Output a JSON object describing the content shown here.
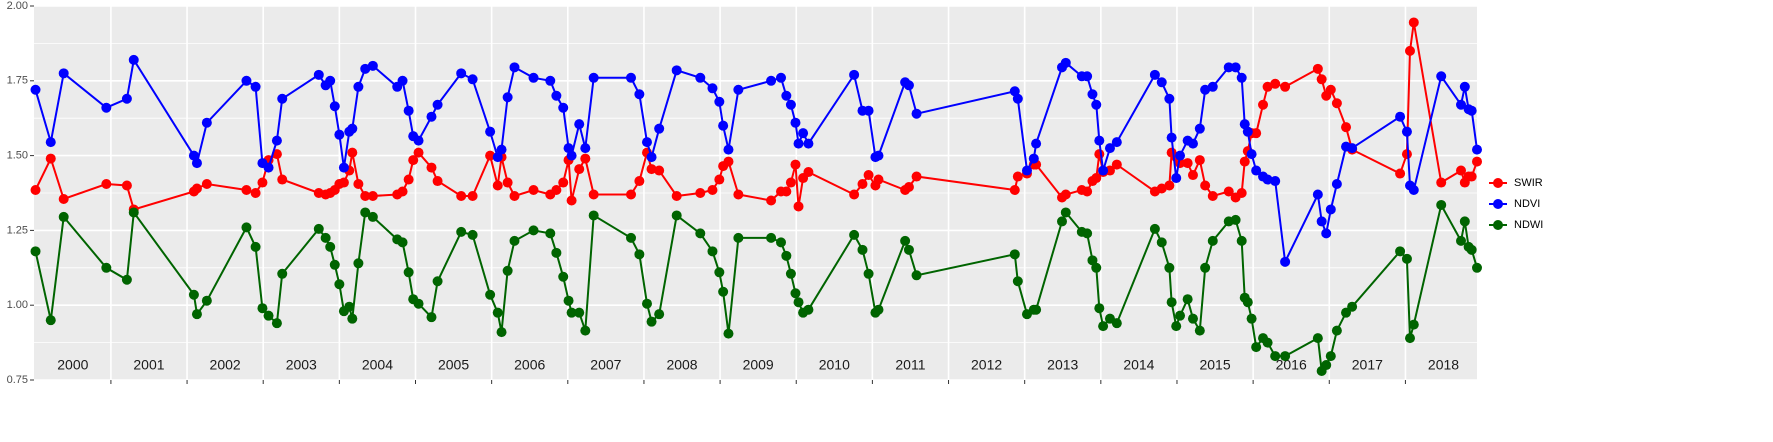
{
  "chart_data": {
    "type": "line",
    "legend": "right",
    "grid": true,
    "xlim": [
      1999.99,
      2018.94
    ],
    "xticks": [
      2001,
      2002,
      2003,
      2004,
      2005,
      2006,
      2007,
      2008,
      2009,
      2010,
      2011,
      2012,
      2013,
      2014,
      2015,
      2016,
      2017,
      2018
    ],
    "year_labels": [
      2000,
      2001,
      2002,
      2003,
      2004,
      2005,
      2006,
      2007,
      2008,
      2009,
      2010,
      2011,
      2012,
      2013,
      2014,
      2015,
      2016,
      2017,
      2018
    ],
    "ylim": [
      0.75,
      2.0
    ],
    "yticks": [
      {
        "value": 0.75,
        "label": "0.75"
      },
      {
        "value": 1.0,
        "label": "1.00"
      },
      {
        "value": 1.25,
        "label": "1.25"
      },
      {
        "value": 1.5,
        "label": "1.50"
      },
      {
        "value": 1.75,
        "label": "1.75"
      },
      {
        "value": 2.0,
        "label": "2.00"
      }
    ],
    "yminor_grid": [
      0.875,
      1.125,
      1.375,
      1.625,
      1.875
    ],
    "x": [
      2000.01,
      2000.21,
      2000.38,
      2000.94,
      2001.21,
      2001.3,
      2002.09,
      2002.13,
      2002.26,
      2002.78,
      2002.9,
      2002.99,
      2003.07,
      2003.18,
      2003.25,
      2003.73,
      2003.82,
      2003.88,
      2003.94,
      2004.0,
      2004.06,
      2004.13,
      2004.17,
      2004.25,
      2004.34,
      2004.44,
      2004.76,
      2004.83,
      2004.91,
      2004.97,
      2005.04,
      2005.21,
      2005.29,
      2005.6,
      2005.75,
      2005.98,
      2006.08,
      2006.13,
      2006.21,
      2006.3,
      2006.55,
      2006.77,
      2006.85,
      2006.94,
      2007.01,
      2007.05,
      2007.15,
      2007.23,
      2007.34,
      2007.83,
      2007.94,
      2008.04,
      2008.1,
      2008.2,
      2008.43,
      2008.74,
      2008.9,
      2008.99,
      2009.04,
      2009.11,
      2009.24,
      2009.67,
      2009.8,
      2009.87,
      2009.93,
      2009.99,
      2010.03,
      2010.09,
      2010.16,
      2010.76,
      2010.87,
      2010.95,
      2011.04,
      2011.08,
      2011.43,
      2011.48,
      2011.58,
      2012.87,
      2012.91,
      2013.03,
      2013.12,
      2013.15,
      2013.49,
      2013.54,
      2013.75,
      2013.82,
      2013.89,
      2013.94,
      2013.98,
      2014.03,
      2014.12,
      2014.21,
      2014.71,
      2014.8,
      2014.9,
      2014.93,
      2014.99,
      2015.04,
      2015.14,
      2015.21,
      2015.3,
      2015.37,
      2015.47,
      2015.68,
      2015.77,
      2015.85,
      2015.89,
      2015.93,
      2015.98,
      2016.04,
      2016.13,
      2016.19,
      2016.29,
      2016.42,
      2016.85,
      2016.9,
      2016.96,
      2017.02,
      2017.1,
      2017.22,
      2017.3,
      2017.93,
      2018.02,
      2018.06,
      2018.11,
      2018.47,
      2018.73,
      2018.78,
      2018.83,
      2018.87,
      2018.94
    ],
    "series": [
      {
        "name": "SWIR",
        "color": "#ff0000",
        "values": [
          1.385,
          1.49,
          1.355,
          1.405,
          1.4,
          1.32,
          1.38,
          1.39,
          1.405,
          1.385,
          1.375,
          1.41,
          1.485,
          1.505,
          1.42,
          1.375,
          1.37,
          1.375,
          1.385,
          1.405,
          1.41,
          1.45,
          1.51,
          1.405,
          1.365,
          1.365,
          1.37,
          1.38,
          1.42,
          1.485,
          1.51,
          1.46,
          1.415,
          1.365,
          1.365,
          1.5,
          1.4,
          1.495,
          1.41,
          1.365,
          1.385,
          1.37,
          1.385,
          1.41,
          1.485,
          1.35,
          1.455,
          1.49,
          1.37,
          1.37,
          1.415,
          1.51,
          1.455,
          1.45,
          1.365,
          1.375,
          1.385,
          1.42,
          1.465,
          1.48,
          1.37,
          1.35,
          1.38,
          1.38,
          1.41,
          1.47,
          1.33,
          1.425,
          1.445,
          1.37,
          1.405,
          1.435,
          1.4,
          1.42,
          1.385,
          1.395,
          1.43,
          1.385,
          1.43,
          1.44,
          1.47,
          1.47,
          1.36,
          1.37,
          1.385,
          1.38,
          1.415,
          1.425,
          1.505,
          1.445,
          1.45,
          1.47,
          1.38,
          1.39,
          1.4,
          1.51,
          1.495,
          1.475,
          1.475,
          1.435,
          1.485,
          1.4,
          1.365,
          1.38,
          1.36,
          1.375,
          1.48,
          1.515,
          1.575,
          1.575,
          1.67,
          1.73,
          1.74,
          1.73,
          1.79,
          1.755,
          1.7,
          1.72,
          1.675,
          1.595,
          1.52,
          1.44,
          1.505,
          1.85,
          1.945,
          1.41,
          1.45,
          1.41,
          1.43,
          1.43,
          1.48
        ]
      },
      {
        "name": "NDVI",
        "color": "#0000ff",
        "values": [
          1.72,
          1.545,
          1.775,
          1.66,
          1.69,
          1.82,
          1.5,
          1.475,
          1.61,
          1.75,
          1.73,
          1.475,
          1.46,
          1.55,
          1.69,
          1.77,
          1.735,
          1.75,
          1.665,
          1.57,
          1.46,
          1.58,
          1.59,
          1.73,
          1.79,
          1.8,
          1.73,
          1.75,
          1.65,
          1.565,
          1.55,
          1.63,
          1.67,
          1.775,
          1.755,
          1.58,
          1.495,
          1.52,
          1.695,
          1.795,
          1.76,
          1.75,
          1.7,
          1.66,
          1.525,
          1.5,
          1.605,
          1.525,
          1.76,
          1.76,
          1.705,
          1.545,
          1.495,
          1.59,
          1.785,
          1.76,
          1.725,
          1.68,
          1.6,
          1.52,
          1.72,
          1.75,
          1.76,
          1.7,
          1.67,
          1.61,
          1.54,
          1.575,
          1.54,
          1.77,
          1.65,
          1.65,
          1.495,
          1.5,
          1.745,
          1.735,
          1.64,
          1.715,
          1.69,
          1.45,
          1.49,
          1.54,
          1.795,
          1.81,
          1.765,
          1.765,
          1.705,
          1.67,
          1.55,
          1.45,
          1.525,
          1.545,
          1.77,
          1.745,
          1.69,
          1.56,
          1.425,
          1.5,
          1.55,
          1.54,
          1.59,
          1.72,
          1.73,
          1.795,
          1.795,
          1.76,
          1.605,
          1.58,
          1.505,
          1.45,
          1.43,
          1.42,
          1.415,
          1.145,
          1.37,
          1.28,
          1.24,
          1.32,
          1.405,
          1.53,
          1.525,
          1.63,
          1.58,
          1.4,
          1.385,
          1.765,
          1.67,
          1.73,
          1.655,
          1.65,
          1.52
        ]
      },
      {
        "name": "NDWI",
        "color": "#006400",
        "values": [
          1.18,
          0.95,
          1.295,
          1.125,
          1.085,
          1.31,
          1.035,
          0.97,
          1.015,
          1.26,
          1.195,
          0.99,
          0.965,
          0.94,
          1.105,
          1.255,
          1.225,
          1.195,
          1.135,
          1.07,
          0.98,
          0.995,
          0.955,
          1.14,
          1.31,
          1.295,
          1.22,
          1.21,
          1.11,
          1.02,
          1.005,
          0.96,
          1.08,
          1.245,
          1.235,
          1.035,
          0.975,
          0.91,
          1.115,
          1.215,
          1.25,
          1.24,
          1.175,
          1.095,
          1.015,
          0.975,
          0.975,
          0.915,
          1.3,
          1.225,
          1.17,
          1.005,
          0.945,
          0.97,
          1.3,
          1.24,
          1.18,
          1.11,
          1.045,
          0.905,
          1.225,
          1.225,
          1.21,
          1.165,
          1.105,
          1.04,
          1.01,
          0.975,
          0.985,
          1.235,
          1.185,
          1.105,
          0.975,
          0.985,
          1.215,
          1.185,
          1.1,
          1.17,
          1.08,
          0.97,
          0.985,
          0.985,
          1.28,
          1.31,
          1.245,
          1.24,
          1.15,
          1.125,
          0.99,
          0.93,
          0.955,
          0.94,
          1.255,
          1.21,
          1.125,
          1.01,
          0.93,
          0.965,
          1.02,
          0.955,
          0.915,
          1.125,
          1.215,
          1.28,
          1.285,
          1.215,
          1.025,
          1.01,
          0.955,
          0.86,
          0.89,
          0.875,
          0.83,
          0.83,
          0.89,
          0.78,
          0.8,
          0.83,
          0.915,
          0.975,
          0.995,
          1.18,
          1.155,
          0.89,
          0.935,
          1.335,
          1.215,
          1.28,
          1.195,
          1.185,
          1.125
        ]
      }
    ]
  }
}
